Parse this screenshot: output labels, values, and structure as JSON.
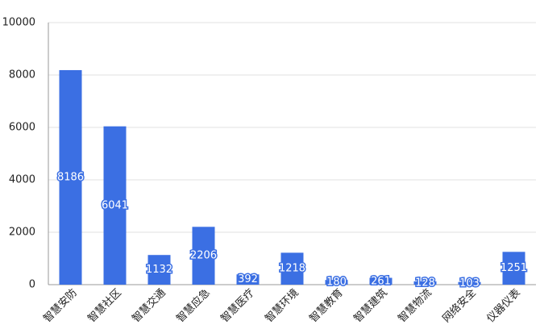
{
  "chart_data": {
    "type": "bar",
    "categories": [
      "智慧安防",
      "智慧社区",
      "智慧交通",
      "智慧应急",
      "智慧医疗",
      "智慧环境",
      "智慧教育",
      "智慧建筑",
      "智慧物流",
      "网络安全",
      "仪器仪表"
    ],
    "values": [
      8186,
      6041,
      1132,
      2206,
      392,
      1218,
      180,
      261,
      128,
      103,
      1251
    ],
    "color": "#3b6fe3",
    "ylim": [
      0,
      10000
    ],
    "yticks": [
      0,
      2000,
      4000,
      6000,
      8000,
      10000
    ],
    "grid": true
  }
}
